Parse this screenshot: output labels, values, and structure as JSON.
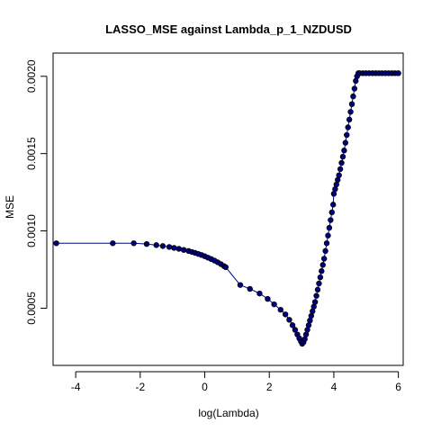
{
  "chart_data": {
    "type": "line",
    "title": "LASSO_MSE against Lambda_p_1_NZDUSD",
    "xlabel": "log(Lambda)",
    "ylabel": "MSE",
    "xticks": [
      -4,
      -2,
      0,
      2,
      4,
      6
    ],
    "xtick_labels": [
      "-4",
      "-2",
      "0",
      "2",
      "4",
      "6"
    ],
    "yticks": [
      0.0005,
      0.001,
      0.0015,
      0.002
    ],
    "ytick_labels": [
      "0.0005",
      "0.0010",
      "0.0015",
      "0.0020"
    ],
    "xlim": [
      -4.7,
      6.15
    ],
    "ylim": [
      0.00013,
      0.00215
    ],
    "grid": false,
    "series_color": "#000080",
    "series": [
      {
        "x": [
          -4.6,
          -2.85,
          -2.2,
          -1.8,
          -1.5,
          -1.3,
          -1.1,
          -0.95,
          -0.8,
          -0.65,
          -0.5,
          -0.4,
          -0.3,
          -0.2,
          -0.1,
          0.0,
          0.1,
          0.2,
          0.3,
          0.4,
          0.5,
          0.6,
          0.65,
          1.1,
          1.4,
          1.7,
          1.95,
          2.15,
          2.35,
          2.5,
          2.62,
          2.72,
          2.8,
          2.87,
          2.93,
          2.98,
          3.02,
          3.06,
          3.1,
          3.14,
          3.18,
          3.22,
          3.26,
          3.3,
          3.34,
          3.38,
          3.42,
          3.46,
          3.5,
          3.54,
          3.58,
          3.62,
          3.66,
          3.7,
          3.74,
          3.78,
          3.82,
          3.86,
          3.9,
          3.94,
          3.98,
          4.0,
          4.04,
          4.08,
          4.12,
          4.16,
          4.2,
          4.24,
          4.28,
          4.32,
          4.36,
          4.4,
          4.44,
          4.48,
          4.52,
          4.56,
          4.6,
          4.64,
          4.68,
          4.72,
          4.76,
          4.8,
          4.9,
          5.0,
          5.1,
          5.2,
          5.3,
          5.4,
          5.5,
          5.6,
          5.7,
          5.8,
          5.9,
          6.0
        ],
        "y": [
          0.00092,
          0.00092,
          0.00092,
          0.000915,
          0.000908,
          0.000902,
          0.000896,
          0.00089,
          0.000884,
          0.000877,
          0.00087,
          0.000864,
          0.000858,
          0.000851,
          0.000844,
          0.000836,
          0.000827,
          0.000818,
          0.000808,
          0.000797,
          0.000785,
          0.000772,
          0.000765,
          0.00065,
          0.000625,
          0.000595,
          0.00056,
          0.000525,
          0.00049,
          0.00046,
          0.000425,
          0.00039,
          0.00036,
          0.00033,
          0.000305,
          0.000285,
          0.00027,
          0.00028,
          0.0003,
          0.00033,
          0.00036,
          0.00039,
          0.00042,
          0.00045,
          0.00048,
          0.00051,
          0.00054,
          0.00058,
          0.00062,
          0.00066,
          0.0007,
          0.00074,
          0.00078,
          0.00082,
          0.00087,
          0.00092,
          0.00097,
          0.00102,
          0.00107,
          0.00112,
          0.00117,
          0.00124,
          0.00127,
          0.0013,
          0.00133,
          0.00136,
          0.0014,
          0.00144,
          0.00148,
          0.00152,
          0.00157,
          0.00162,
          0.00167,
          0.00172,
          0.00177,
          0.00182,
          0.00187,
          0.00192,
          0.00197,
          0.002,
          0.00202,
          0.00202,
          0.00202,
          0.00202,
          0.00202,
          0.00202,
          0.00202,
          0.00202,
          0.00202,
          0.00202,
          0.00202,
          0.00202,
          0.00202,
          0.00202
        ]
      }
    ]
  }
}
